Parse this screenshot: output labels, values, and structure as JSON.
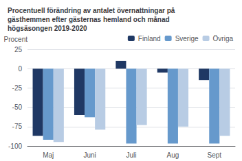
{
  "chart_data": {
    "type": "bar",
    "title": "Procentuell förändring av antalet övernattningar på\ngästhemmen efter gästernas hemland och månad\nhögsäsongen 2019-2020",
    "ylabel": "Procent",
    "categories": [
      "Maj",
      "Juni",
      "Juli",
      "Aug",
      "Sept"
    ],
    "series": [
      {
        "name": "Finland",
        "color": "#1f3864",
        "values": [
          -87,
          -60,
          10,
          -5,
          -15
        ]
      },
      {
        "name": "Sverige",
        "color": "#6699cc",
        "values": [
          -92,
          -63,
          -97,
          -97,
          -97
        ]
      },
      {
        "name": "Övriga",
        "color": "#b8cce4",
        "values": [
          -95,
          -79,
          -73,
          -75,
          -87
        ]
      }
    ],
    "ylim": [
      -100,
      25
    ],
    "yticks": [
      -100,
      -75,
      -50,
      -25,
      0,
      25
    ],
    "grid": true,
    "legend": "upper right"
  }
}
